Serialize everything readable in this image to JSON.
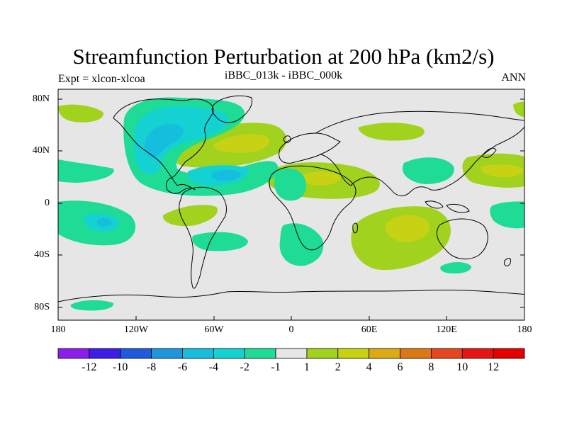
{
  "title": "Streamfunction Perturbation at 200 hPa (km2/s)",
  "left_label": "Expt = xlcon-xlcoa",
  "center_label": "iBBC_013k - iBBC_000k",
  "right_label": "ANN",
  "colors": {
    "land_background": "#e6e6e6",
    "coastline": "#000000"
  },
  "chart_data": {
    "type": "contour_map",
    "variable": "Streamfunction Perturbation at 200 hPa",
    "units": "km2/s",
    "lat_ticks": [
      "80N",
      "40N",
      "0",
      "40S",
      "80S"
    ],
    "lon_ticks": [
      "180",
      "120W",
      "60W",
      "0",
      "60E",
      "120E",
      "180"
    ],
    "contour_levels": [
      -12,
      -10,
      -8,
      -6,
      -4,
      -2,
      -1,
      1,
      2,
      4,
      6,
      8,
      10,
      12
    ],
    "colorbar_labels": [
      "-12",
      "-10",
      "-8",
      "-6",
      "-4",
      "-2",
      "-1",
      "1",
      "2",
      "4",
      "6",
      "8",
      "10",
      "12"
    ],
    "colorbar_colors": [
      "#8c1eeb",
      "#3c1ee6",
      "#1e5adc",
      "#1e96dc",
      "#14bedc",
      "#14d2d2",
      "#1edc96",
      "#e6e6e6",
      "#a0d21e",
      "#c8d214",
      "#dcaa14",
      "#dc7814",
      "#e6461e",
      "#e61414",
      "#e60000"
    ],
    "anomalies": [
      {
        "name": "north-america-negative",
        "min_level": "-4",
        "lon": -100,
        "lat": 45
      },
      {
        "name": "greenland-negative",
        "min_level": "-2",
        "lon": -50,
        "lat": 70
      },
      {
        "name": "caribbean-negative",
        "min_level": "-4",
        "lon": -75,
        "lat": 20
      },
      {
        "name": "north-atlantic-positive",
        "max_level": "4",
        "lon": -30,
        "lat": 40
      },
      {
        "name": "africa-north-positive",
        "max_level": "4",
        "lon": 15,
        "lat": 20
      },
      {
        "name": "europe-positive",
        "max_level": "2",
        "lon": 50,
        "lat": 50
      },
      {
        "name": "west-pacific-north-positive",
        "max_level": "4",
        "lon": 150,
        "lat": 27
      },
      {
        "name": "indian-ocean-positive",
        "max_level": "4",
        "lon": 85,
        "lat": -20
      },
      {
        "name": "south-pacific-negative",
        "min_level": "-4",
        "lon": -140,
        "lat": -15
      },
      {
        "name": "south-atlantic-negative",
        "min_level": "-2",
        "lon": -5,
        "lat": -25
      }
    ]
  }
}
